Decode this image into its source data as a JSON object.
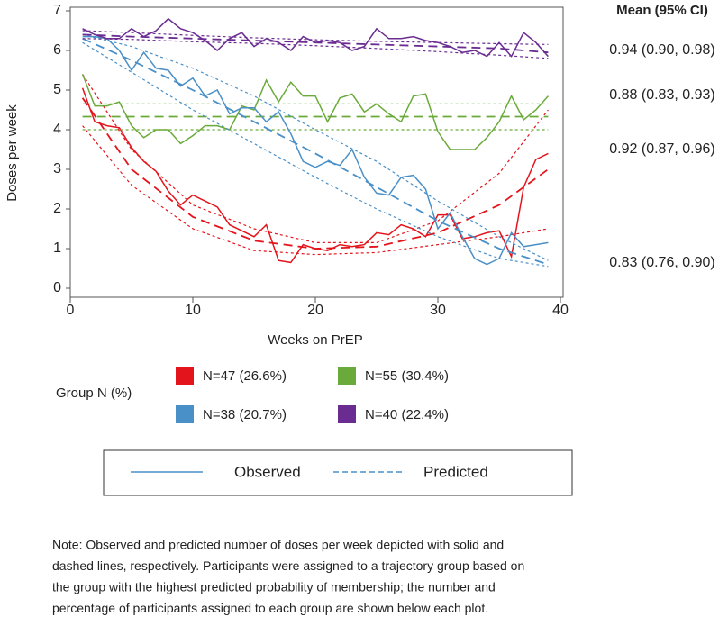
{
  "chart_data": {
    "type": "line",
    "y_label": "Doses per week",
    "x_label": "Weeks on PrEP",
    "ci_header": "Mean (95% CI)",
    "legend_title": "Group N (%)",
    "observed_label": "Observed",
    "predicted_label": "Predicted",
    "xlim": [
      0,
      40
    ],
    "ylim": [
      0,
      7
    ],
    "xticks": [
      0,
      10,
      20,
      30,
      40
    ],
    "yticks": [
      0,
      1,
      2,
      3,
      4,
      5,
      6,
      7
    ],
    "x": [
      1,
      2,
      3,
      4,
      5,
      6,
      7,
      8,
      9,
      10,
      11,
      12,
      13,
      14,
      15,
      16,
      17,
      18,
      19,
      20,
      21,
      22,
      23,
      24,
      25,
      26,
      27,
      28,
      29,
      30,
      31,
      32,
      33,
      34,
      35,
      36,
      37,
      38,
      39
    ],
    "x_fit": [
      1,
      5,
      10,
      15,
      20,
      25,
      30,
      35,
      39
    ],
    "series": [
      {
        "name": "N=47 (26.6%)",
        "color": "#e3141c",
        "mean_ci": "0.92 (0.87, 0.96)",
        "values": [
          5.05,
          4.2,
          4.1,
          4.05,
          3.55,
          3.2,
          2.95,
          2.45,
          2.1,
          2.35,
          2.2,
          2.05,
          1.6,
          1.45,
          1.3,
          1.6,
          0.7,
          0.65,
          1.1,
          1.0,
          0.95,
          1.1,
          1.05,
          1.1,
          1.4,
          1.35,
          1.6,
          1.5,
          1.3,
          1.85,
          1.85,
          1.25,
          1.3,
          1.4,
          1.45,
          0.8,
          2.55,
          3.25,
          3.4
        ],
        "fit": [
          4.8,
          3.0,
          1.8,
          1.2,
          1.0,
          1.05,
          1.4,
          2.1,
          3.0
        ],
        "fit_upper": [
          5.4,
          3.5,
          2.1,
          1.5,
          1.15,
          1.15,
          1.7,
          2.9,
          4.5
        ],
        "fit_lower": [
          4.1,
          2.6,
          1.5,
          0.95,
          0.85,
          0.9,
          1.1,
          1.3,
          1.5
        ]
      },
      {
        "name": "N=55 (30.4%)",
        "color": "#6aaa3a",
        "mean_ci": "0.88 (0.83, 0.93)",
        "values": [
          5.4,
          4.6,
          4.6,
          4.7,
          4.1,
          3.8,
          4.0,
          4.0,
          3.65,
          3.85,
          4.1,
          4.1,
          4.0,
          4.6,
          4.5,
          5.25,
          4.7,
          5.2,
          4.85,
          4.85,
          4.2,
          4.8,
          4.9,
          4.45,
          4.65,
          4.4,
          4.2,
          4.85,
          4.9,
          3.95,
          3.5,
          3.5,
          3.5,
          3.8,
          4.2,
          4.85,
          4.25,
          4.5,
          4.85
        ],
        "fit": [
          4.33,
          4.33,
          4.33,
          4.33,
          4.33,
          4.33,
          4.33,
          4.33,
          4.33
        ],
        "fit_upper": [
          4.65,
          4.65,
          4.65,
          4.65,
          4.65,
          4.65,
          4.65,
          4.65,
          4.65
        ],
        "fit_lower": [
          4.0,
          4.0,
          4.0,
          4.0,
          4.0,
          4.0,
          4.0,
          4.0,
          4.0
        ]
      },
      {
        "name": "N=38 (20.7%)",
        "color": "#4a90c8",
        "mean_ci": "0.83 (0.76, 0.90)",
        "values": [
          6.35,
          6.35,
          6.3,
          6.0,
          5.5,
          5.95,
          5.55,
          5.5,
          5.1,
          5.3,
          4.85,
          5.0,
          4.4,
          4.55,
          4.55,
          4.2,
          4.45,
          3.9,
          3.2,
          3.05,
          3.2,
          3.1,
          3.5,
          2.8,
          2.4,
          2.35,
          2.8,
          2.85,
          2.5,
          1.5,
          1.9,
          1.3,
          0.75,
          0.6,
          0.75,
          1.4,
          1.05,
          1.1,
          1.15
        ],
        "fit": [
          6.3,
          5.75,
          5.0,
          4.2,
          3.4,
          2.55,
          1.7,
          1.0,
          0.6
        ],
        "fit_upper": [
          6.4,
          6.1,
          5.55,
          4.85,
          4.0,
          3.2,
          2.2,
          1.3,
          0.7
        ],
        "fit_lower": [
          6.2,
          5.45,
          4.5,
          3.65,
          2.8,
          2.0,
          1.3,
          0.75,
          0.55
        ]
      },
      {
        "name": "N=40 (22.4%)",
        "color": "#6a2c91",
        "mean_ci": "0.94 (0.90, 0.98)",
        "values": [
          6.55,
          6.4,
          6.3,
          6.3,
          6.55,
          6.35,
          6.5,
          6.8,
          6.55,
          6.45,
          6.25,
          6.0,
          6.3,
          6.45,
          6.1,
          6.3,
          6.2,
          6.0,
          6.35,
          6.2,
          6.25,
          6.2,
          6.0,
          6.1,
          6.55,
          6.3,
          6.3,
          6.35,
          6.25,
          6.2,
          6.1,
          5.95,
          6.0,
          5.85,
          6.2,
          5.85,
          6.45,
          6.2,
          5.85
        ],
        "fit": [
          6.4,
          6.35,
          6.3,
          6.25,
          6.2,
          6.15,
          6.1,
          6.05,
          5.95
        ],
        "fit_upper": [
          6.5,
          6.45,
          6.38,
          6.32,
          6.27,
          6.23,
          6.2,
          6.17,
          6.15
        ],
        "fit_lower": [
          6.3,
          6.28,
          6.22,
          6.18,
          6.12,
          6.05,
          5.97,
          5.88,
          5.8
        ]
      }
    ]
  },
  "note": [
    "Note: Observed and predicted number of doses per week depicted with solid and",
    "dashed lines, respectively. Participants were assigned to a trajectory group based on",
    "the group with the highest predicted probability of membership; the number and",
    "percentage of participants assigned to each group are shown below each plot."
  ]
}
